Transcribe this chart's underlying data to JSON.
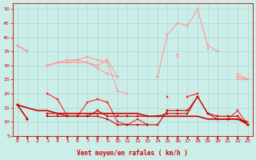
{
  "x": [
    0,
    1,
    2,
    3,
    4,
    5,
    6,
    7,
    8,
    9,
    10,
    11,
    12,
    13,
    14,
    15,
    16,
    17,
    18,
    19,
    20,
    21,
    22,
    23
  ],
  "series": [
    {
      "name": "rafales_top",
      "color": "#ff9999",
      "linewidth": 0.8,
      "marker": "s",
      "markersize": 1.8,
      "values": [
        37,
        35,
        null,
        30,
        31,
        31,
        32,
        33,
        32,
        31,
        21,
        20,
        null,
        null,
        26,
        41,
        45,
        44,
        50,
        37,
        35,
        null,
        27,
        25
      ]
    },
    {
      "name": "rafales_mid",
      "color": "#ff9999",
      "linewidth": 0.8,
      "marker": "s",
      "markersize": 1.8,
      "values": [
        37,
        35,
        null,
        30,
        31,
        32,
        32,
        31,
        30,
        32,
        26,
        null,
        null,
        null,
        26,
        null,
        34,
        null,
        null,
        37,
        null,
        null,
        26,
        25
      ]
    },
    {
      "name": "rafales_bot",
      "color": "#ff9999",
      "linewidth": 0.8,
      "marker": "s",
      "markersize": 1.8,
      "values": [
        37,
        35,
        null,
        30,
        31,
        31,
        31,
        31,
        29,
        27,
        26,
        null,
        null,
        null,
        26,
        null,
        33,
        null,
        null,
        36,
        null,
        null,
        25,
        25
      ]
    },
    {
      "name": "vent_top",
      "color": "#ff2222",
      "linewidth": 0.8,
      "marker": "s",
      "markersize": 1.8,
      "values": [
        16,
        11,
        null,
        20,
        18,
        12,
        12,
        17,
        18,
        17,
        10,
        9,
        11,
        9,
        null,
        19,
        null,
        19,
        20,
        null,
        null,
        11,
        14,
        9
      ]
    },
    {
      "name": "vent_mean",
      "color": "#cc0000",
      "linewidth": 1.2,
      "marker": null,
      "markersize": 0,
      "values": [
        16,
        15,
        14,
        14,
        13,
        13,
        13,
        13,
        13,
        13,
        13,
        13,
        13,
        12,
        12,
        12,
        12,
        12,
        12,
        11,
        11,
        11,
        11,
        10
      ]
    },
    {
      "name": "vent_bot",
      "color": "#cc0000",
      "linewidth": 0.8,
      "marker": "s",
      "markersize": 1.8,
      "values": [
        16,
        11,
        null,
        12,
        12,
        12,
        12,
        12,
        12,
        11,
        9,
        9,
        9,
        9,
        9,
        14,
        14,
        14,
        19,
        13,
        11,
        11,
        11,
        9
      ]
    },
    {
      "name": "vent_mid",
      "color": "#cc0000",
      "linewidth": 0.8,
      "marker": "s",
      "markersize": 1.8,
      "values": [
        16,
        11,
        null,
        13,
        13,
        12,
        12,
        12,
        14,
        12,
        12,
        12,
        12,
        12,
        12,
        13,
        13,
        13,
        19,
        13,
        12,
        12,
        12,
        9
      ]
    }
  ],
  "xlabel": "Vent moyen/en rafales ( km/h )",
  "xlim_lo": -0.5,
  "xlim_hi": 23.5,
  "ylim_lo": 5,
  "ylim_hi": 52,
  "yticks": [
    5,
    10,
    15,
    20,
    25,
    30,
    35,
    40,
    45,
    50
  ],
  "xticks": [
    0,
    1,
    2,
    3,
    4,
    5,
    6,
    7,
    8,
    9,
    10,
    11,
    12,
    13,
    14,
    15,
    16,
    17,
    18,
    19,
    20,
    21,
    22,
    23
  ],
  "background_color": "#cceee8",
  "grid_color": "#aad8d8",
  "xlabel_color": "#cc0000",
  "tick_color": "#cc0000",
  "arrow_color": "#cc0000",
  "spine_color": "#cc0000"
}
